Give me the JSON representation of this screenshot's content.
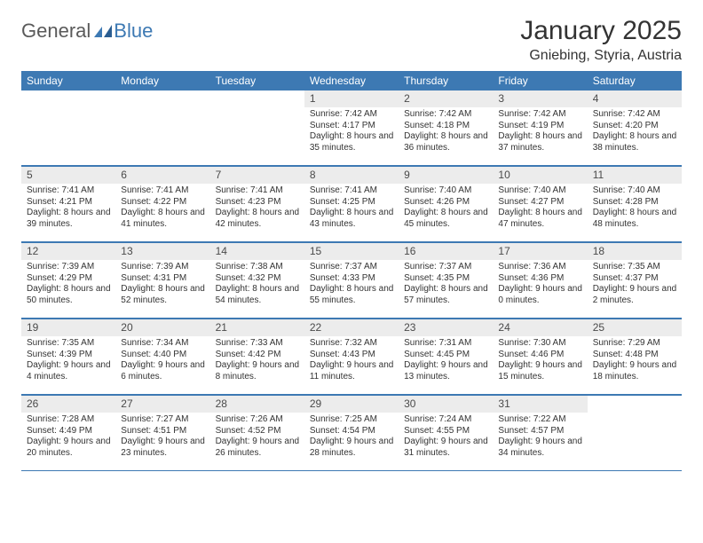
{
  "logo": {
    "text1": "General",
    "text2": "Blue"
  },
  "title": "January 2025",
  "location": "Gniebing, Styria, Austria",
  "colors": {
    "header_bg": "#3d79b3",
    "daynum_bg": "#ececec",
    "row_border": "#3d79b3",
    "text": "#333333",
    "logo_gray": "#5a5a5a",
    "logo_blue": "#3d79b3",
    "background": "#ffffff"
  },
  "daysOfWeek": [
    "Sunday",
    "Monday",
    "Tuesday",
    "Wednesday",
    "Thursday",
    "Friday",
    "Saturday"
  ],
  "weeks": [
    [
      {
        "n": "",
        "sr": "",
        "ss": "",
        "dl": ""
      },
      {
        "n": "",
        "sr": "",
        "ss": "",
        "dl": ""
      },
      {
        "n": "",
        "sr": "",
        "ss": "",
        "dl": ""
      },
      {
        "n": "1",
        "sr": "Sunrise: 7:42 AM",
        "ss": "Sunset: 4:17 PM",
        "dl": "Daylight: 8 hours and 35 minutes."
      },
      {
        "n": "2",
        "sr": "Sunrise: 7:42 AM",
        "ss": "Sunset: 4:18 PM",
        "dl": "Daylight: 8 hours and 36 minutes."
      },
      {
        "n": "3",
        "sr": "Sunrise: 7:42 AM",
        "ss": "Sunset: 4:19 PM",
        "dl": "Daylight: 8 hours and 37 minutes."
      },
      {
        "n": "4",
        "sr": "Sunrise: 7:42 AM",
        "ss": "Sunset: 4:20 PM",
        "dl": "Daylight: 8 hours and 38 minutes."
      }
    ],
    [
      {
        "n": "5",
        "sr": "Sunrise: 7:41 AM",
        "ss": "Sunset: 4:21 PM",
        "dl": "Daylight: 8 hours and 39 minutes."
      },
      {
        "n": "6",
        "sr": "Sunrise: 7:41 AM",
        "ss": "Sunset: 4:22 PM",
        "dl": "Daylight: 8 hours and 41 minutes."
      },
      {
        "n": "7",
        "sr": "Sunrise: 7:41 AM",
        "ss": "Sunset: 4:23 PM",
        "dl": "Daylight: 8 hours and 42 minutes."
      },
      {
        "n": "8",
        "sr": "Sunrise: 7:41 AM",
        "ss": "Sunset: 4:25 PM",
        "dl": "Daylight: 8 hours and 43 minutes."
      },
      {
        "n": "9",
        "sr": "Sunrise: 7:40 AM",
        "ss": "Sunset: 4:26 PM",
        "dl": "Daylight: 8 hours and 45 minutes."
      },
      {
        "n": "10",
        "sr": "Sunrise: 7:40 AM",
        "ss": "Sunset: 4:27 PM",
        "dl": "Daylight: 8 hours and 47 minutes."
      },
      {
        "n": "11",
        "sr": "Sunrise: 7:40 AM",
        "ss": "Sunset: 4:28 PM",
        "dl": "Daylight: 8 hours and 48 minutes."
      }
    ],
    [
      {
        "n": "12",
        "sr": "Sunrise: 7:39 AM",
        "ss": "Sunset: 4:29 PM",
        "dl": "Daylight: 8 hours and 50 minutes."
      },
      {
        "n": "13",
        "sr": "Sunrise: 7:39 AM",
        "ss": "Sunset: 4:31 PM",
        "dl": "Daylight: 8 hours and 52 minutes."
      },
      {
        "n": "14",
        "sr": "Sunrise: 7:38 AM",
        "ss": "Sunset: 4:32 PM",
        "dl": "Daylight: 8 hours and 54 minutes."
      },
      {
        "n": "15",
        "sr": "Sunrise: 7:37 AM",
        "ss": "Sunset: 4:33 PM",
        "dl": "Daylight: 8 hours and 55 minutes."
      },
      {
        "n": "16",
        "sr": "Sunrise: 7:37 AM",
        "ss": "Sunset: 4:35 PM",
        "dl": "Daylight: 8 hours and 57 minutes."
      },
      {
        "n": "17",
        "sr": "Sunrise: 7:36 AM",
        "ss": "Sunset: 4:36 PM",
        "dl": "Daylight: 9 hours and 0 minutes."
      },
      {
        "n": "18",
        "sr": "Sunrise: 7:35 AM",
        "ss": "Sunset: 4:37 PM",
        "dl": "Daylight: 9 hours and 2 minutes."
      }
    ],
    [
      {
        "n": "19",
        "sr": "Sunrise: 7:35 AM",
        "ss": "Sunset: 4:39 PM",
        "dl": "Daylight: 9 hours and 4 minutes."
      },
      {
        "n": "20",
        "sr": "Sunrise: 7:34 AM",
        "ss": "Sunset: 4:40 PM",
        "dl": "Daylight: 9 hours and 6 minutes."
      },
      {
        "n": "21",
        "sr": "Sunrise: 7:33 AM",
        "ss": "Sunset: 4:42 PM",
        "dl": "Daylight: 9 hours and 8 minutes."
      },
      {
        "n": "22",
        "sr": "Sunrise: 7:32 AM",
        "ss": "Sunset: 4:43 PM",
        "dl": "Daylight: 9 hours and 11 minutes."
      },
      {
        "n": "23",
        "sr": "Sunrise: 7:31 AM",
        "ss": "Sunset: 4:45 PM",
        "dl": "Daylight: 9 hours and 13 minutes."
      },
      {
        "n": "24",
        "sr": "Sunrise: 7:30 AM",
        "ss": "Sunset: 4:46 PM",
        "dl": "Daylight: 9 hours and 15 minutes."
      },
      {
        "n": "25",
        "sr": "Sunrise: 7:29 AM",
        "ss": "Sunset: 4:48 PM",
        "dl": "Daylight: 9 hours and 18 minutes."
      }
    ],
    [
      {
        "n": "26",
        "sr": "Sunrise: 7:28 AM",
        "ss": "Sunset: 4:49 PM",
        "dl": "Daylight: 9 hours and 20 minutes."
      },
      {
        "n": "27",
        "sr": "Sunrise: 7:27 AM",
        "ss": "Sunset: 4:51 PM",
        "dl": "Daylight: 9 hours and 23 minutes."
      },
      {
        "n": "28",
        "sr": "Sunrise: 7:26 AM",
        "ss": "Sunset: 4:52 PM",
        "dl": "Daylight: 9 hours and 26 minutes."
      },
      {
        "n": "29",
        "sr": "Sunrise: 7:25 AM",
        "ss": "Sunset: 4:54 PM",
        "dl": "Daylight: 9 hours and 28 minutes."
      },
      {
        "n": "30",
        "sr": "Sunrise: 7:24 AM",
        "ss": "Sunset: 4:55 PM",
        "dl": "Daylight: 9 hours and 31 minutes."
      },
      {
        "n": "31",
        "sr": "Sunrise: 7:22 AM",
        "ss": "Sunset: 4:57 PM",
        "dl": "Daylight: 9 hours and 34 minutes."
      },
      {
        "n": "",
        "sr": "",
        "ss": "",
        "dl": ""
      }
    ]
  ]
}
